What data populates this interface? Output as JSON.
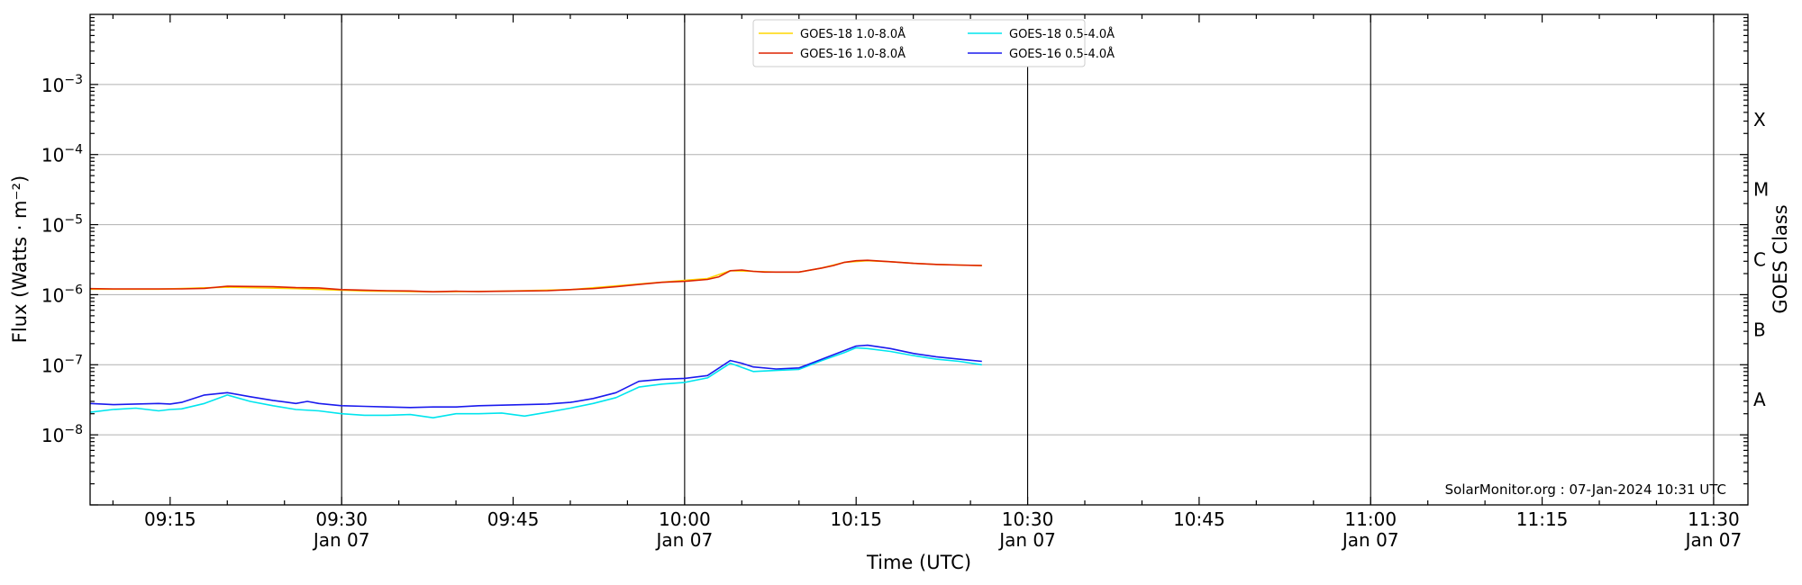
{
  "chart_data": {
    "type": "line",
    "xlabel": "Time (UTC)",
    "ylabel": "Flux (Watts · m⁻²)",
    "y2label": "GOES Class",
    "yscale": "log",
    "ylim": [
      1e-09,
      0.01
    ],
    "xlim": [
      "09:08",
      "11:33"
    ],
    "grid": "horizontal at decades",
    "legend_position": "top-center",
    "watermark": "SolarMonitor.org : 07-Jan-2024 10:31 UTC",
    "x_ticks": [
      {
        "time": "09:15",
        "label": "09:15",
        "sublabel": ""
      },
      {
        "time": "09:30",
        "label": "09:30",
        "sublabel": "Jan 07"
      },
      {
        "time": "09:45",
        "label": "09:45",
        "sublabel": ""
      },
      {
        "time": "10:00",
        "label": "10:00",
        "sublabel": "Jan 07"
      },
      {
        "time": "10:15",
        "label": "10:15",
        "sublabel": ""
      },
      {
        "time": "10:30",
        "label": "10:30",
        "sublabel": "Jan 07"
      },
      {
        "time": "10:45",
        "label": "10:45",
        "sublabel": ""
      },
      {
        "time": "11:00",
        "label": "11:00",
        "sublabel": "Jan 07"
      },
      {
        "time": "11:15",
        "label": "11:15",
        "sublabel": ""
      },
      {
        "time": "11:30",
        "label": "11:30",
        "sublabel": "Jan 07"
      }
    ],
    "day_lines": [
      "09:30",
      "10:00",
      "10:30",
      "11:00",
      "11:30"
    ],
    "y_ticks": [
      {
        "value": 1e-08,
        "base": "10",
        "exp": "−8"
      },
      {
        "value": 1e-07,
        "base": "10",
        "exp": "−7"
      },
      {
        "value": 1e-06,
        "base": "10",
        "exp": "−6"
      },
      {
        "value": 1e-05,
        "base": "10",
        "exp": "−5"
      },
      {
        "value": 0.0001,
        "base": "10",
        "exp": "−4"
      },
      {
        "value": 0.001,
        "base": "10",
        "exp": "−3"
      }
    ],
    "goes_classes": [
      {
        "label": "A",
        "value": 3.16e-08
      },
      {
        "label": "B",
        "value": 3.16e-07
      },
      {
        "label": "C",
        "value": 3.16e-06
      },
      {
        "label": "M",
        "value": 3.16e-05
      },
      {
        "label": "X",
        "value": 0.000316
      }
    ],
    "series": [
      {
        "name": "GOES-18 1.0-8.0Å",
        "color": "#ffd700",
        "x": [
          "09:08",
          "09:14",
          "09:20",
          "09:26",
          "09:32",
          "09:38",
          "09:44",
          "09:50",
          "09:56",
          "10:02",
          "10:04",
          "10:06",
          "10:08",
          "10:10",
          "10:12",
          "10:14",
          "10:16",
          "10:18",
          "10:20",
          "10:22",
          "10:24",
          "10:26"
        ],
        "values": [
          1.2e-06,
          1.2e-06,
          1.28e-06,
          1.22e-06,
          1.13e-06,
          1.1e-06,
          1.12e-06,
          1.18e-06,
          1.42e-06,
          1.7e-06,
          2.2e-06,
          2.15e-06,
          2.1e-06,
          2.1e-06,
          2.4e-06,
          2.9e-06,
          3.05e-06,
          2.95e-06,
          2.8e-06,
          2.7e-06,
          2.65e-06,
          2.6e-06
        ]
      },
      {
        "name": "GOES-16 1.0-8.0Å",
        "color": "#dd2200",
        "x": [
          "09:08",
          "09:10",
          "09:12",
          "09:14",
          "09:16",
          "09:18",
          "09:20",
          "09:22",
          "09:24",
          "09:26",
          "09:28",
          "09:30",
          "09:32",
          "09:34",
          "09:36",
          "09:38",
          "09:40",
          "09:42",
          "09:44",
          "09:46",
          "09:48",
          "09:50",
          "09:52",
          "09:54",
          "09:56",
          "09:58",
          "10:00",
          "10:02",
          "10:03",
          "10:04",
          "10:05",
          "10:06",
          "10:07",
          "10:08",
          "10:10",
          "10:12",
          "10:13",
          "10:14",
          "10:15",
          "10:16",
          "10:18",
          "10:20",
          "10:22",
          "10:24",
          "10:26"
        ],
        "values": [
          1.22e-06,
          1.21e-06,
          1.21e-06,
          1.21e-06,
          1.21e-06,
          1.23e-06,
          1.32e-06,
          1.31e-06,
          1.3e-06,
          1.26e-06,
          1.25e-06,
          1.18e-06,
          1.16e-06,
          1.14e-06,
          1.13e-06,
          1.1e-06,
          1.12e-06,
          1.11e-06,
          1.12e-06,
          1.13e-06,
          1.14e-06,
          1.18e-06,
          1.22e-06,
          1.3e-06,
          1.4e-06,
          1.5e-06,
          1.55e-06,
          1.65e-06,
          1.8e-06,
          2.2e-06,
          2.25e-06,
          2.15e-06,
          2.1e-06,
          2.1e-06,
          2.1e-06,
          2.4e-06,
          2.6e-06,
          2.9e-06,
          3.05e-06,
          3.1e-06,
          2.95e-06,
          2.8e-06,
          2.7e-06,
          2.65e-06,
          2.6e-06
        ]
      },
      {
        "name": "GOES-18 0.5-4.0Å",
        "color": "#00e5ee",
        "x": [
          "09:08",
          "09:10",
          "09:12",
          "09:14",
          "09:15",
          "09:16",
          "09:18",
          "09:20",
          "09:22",
          "09:24",
          "09:26",
          "09:28",
          "09:30",
          "09:32",
          "09:34",
          "09:36",
          "09:38",
          "09:40",
          "09:42",
          "09:44",
          "09:46",
          "09:48",
          "09:50",
          "09:52",
          "09:54",
          "09:56",
          "09:58",
          "10:00",
          "10:02",
          "10:04",
          "10:06",
          "10:08",
          "10:10",
          "10:12",
          "10:14",
          "10:15",
          "10:16",
          "10:18",
          "10:20",
          "10:22",
          "10:24",
          "10:26"
        ],
        "values": [
          2.1e-08,
          2.3e-08,
          2.4e-08,
          2.2e-08,
          2.3e-08,
          2.35e-08,
          2.8e-08,
          3.7e-08,
          3e-08,
          2.6e-08,
          2.3e-08,
          2.2e-08,
          2e-08,
          1.9e-08,
          1.9e-08,
          1.95e-08,
          1.75e-08,
          2e-08,
          2e-08,
          2.05e-08,
          1.85e-08,
          2.1e-08,
          2.4e-08,
          2.8e-08,
          3.4e-08,
          4.8e-08,
          5.3e-08,
          5.6e-08,
          6.5e-08,
          1.05e-07,
          8e-08,
          8.3e-08,
          8.6e-08,
          1.15e-07,
          1.5e-07,
          1.75e-07,
          1.7e-07,
          1.55e-07,
          1.35e-07,
          1.2e-07,
          1.12e-07,
          1e-07
        ]
      },
      {
        "name": "GOES-16 0.5-4.0Å",
        "color": "#1a1aee",
        "x": [
          "09:08",
          "09:10",
          "09:12",
          "09:14",
          "09:15",
          "09:16",
          "09:18",
          "09:20",
          "09:22",
          "09:24",
          "09:25",
          "09:26",
          "09:27",
          "09:28",
          "09:30",
          "09:32",
          "09:34",
          "09:36",
          "09:38",
          "09:40",
          "09:42",
          "09:44",
          "09:46",
          "09:48",
          "09:50",
          "09:52",
          "09:54",
          "09:56",
          "09:58",
          "10:00",
          "10:02",
          "10:04",
          "10:05",
          "10:06",
          "10:08",
          "10:10",
          "10:12",
          "10:14",
          "10:15",
          "10:16",
          "10:18",
          "10:20",
          "10:22",
          "10:24",
          "10:26"
        ],
        "values": [
          2.8e-08,
          2.7e-08,
          2.75e-08,
          2.8e-08,
          2.75e-08,
          2.9e-08,
          3.7e-08,
          4e-08,
          3.5e-08,
          3.1e-08,
          2.95e-08,
          2.8e-08,
          3e-08,
          2.8e-08,
          2.6e-08,
          2.55e-08,
          2.5e-08,
          2.45e-08,
          2.5e-08,
          2.5e-08,
          2.6e-08,
          2.65e-08,
          2.7e-08,
          2.75e-08,
          2.9e-08,
          3.3e-08,
          4e-08,
          5.8e-08,
          6.2e-08,
          6.4e-08,
          7e-08,
          1.15e-07,
          1.05e-07,
          9.3e-08,
          8.7e-08,
          9e-08,
          1.2e-07,
          1.6e-07,
          1.85e-07,
          1.9e-07,
          1.7e-07,
          1.45e-07,
          1.3e-07,
          1.2e-07,
          1.12e-07
        ]
      }
    ]
  }
}
